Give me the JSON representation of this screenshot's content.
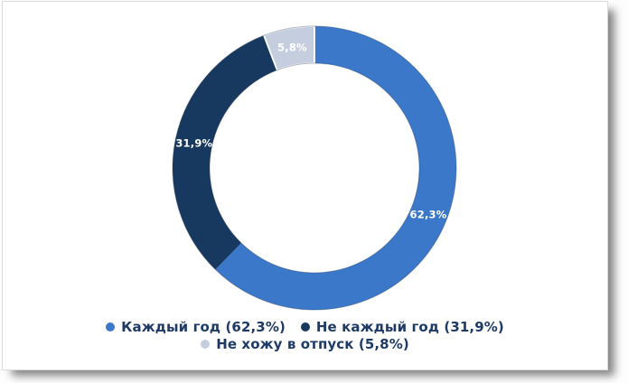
{
  "chart_data": {
    "type": "pie",
    "subtype": "donut",
    "title": "",
    "unit": "%",
    "decimal_separator": ",",
    "background": "#FFFFFF",
    "start_angle_deg": 0,
    "direction": "clockwise",
    "donut_hole_ratio": 0.74,
    "grid": false,
    "legend_position": "bottom",
    "legend_rows": [
      [
        0,
        1
      ],
      [
        2
      ]
    ],
    "legend_text_color": "#1E3A66",
    "label_color_on_slice": "#FFFFFF",
    "rim_outline_color": "rgba(28,48,78,0.35)",
    "slices": [
      {
        "name": "Каждый год",
        "value": 62.3,
        "value_label": "62,3%",
        "legend_label": "Каждый год (62,3%)",
        "color": "#3B78C9",
        "white_separator": false
      },
      {
        "name": "Не каждый год",
        "value": 31.9,
        "value_label": "31,9%",
        "legend_label": "Не каждый год (31,9%)",
        "color": "#18395F",
        "white_separator": false
      },
      {
        "name": "Не хожу в отпуск",
        "value": 5.8,
        "value_label": "5,8%",
        "legend_label": "Не хожу в отпуск (5,8%)",
        "color": "#C5CEDE",
        "white_separator": true
      }
    ]
  }
}
